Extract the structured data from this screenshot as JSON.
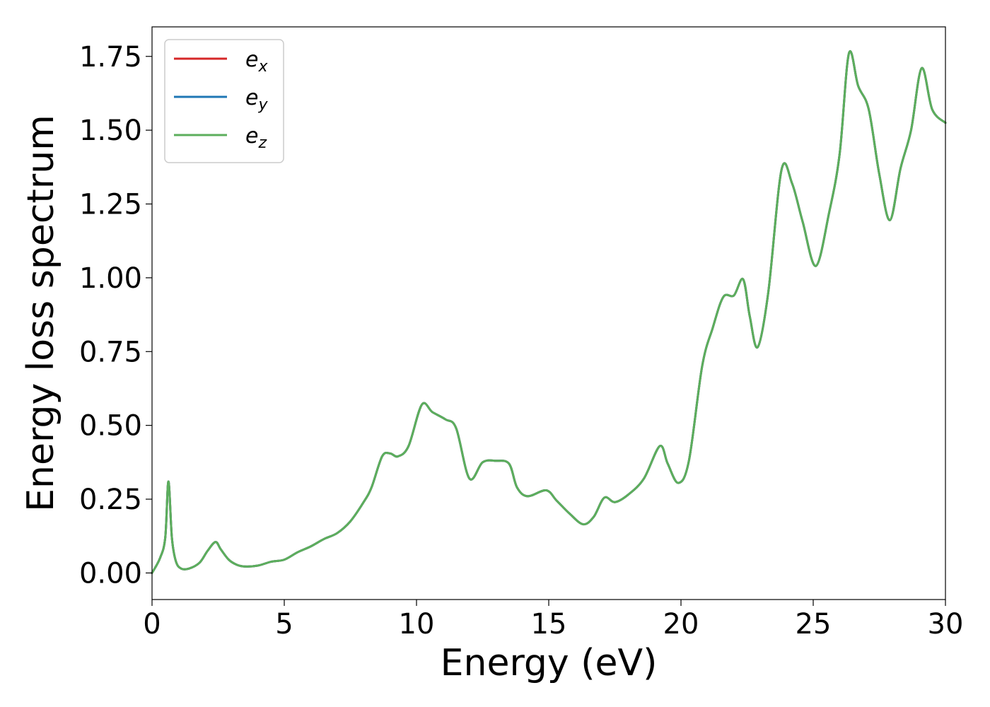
{
  "chart_data": {
    "type": "line",
    "title": "",
    "xlabel": "Energy (eV)",
    "ylabel": "Energy loss spectrum",
    "xlim": [
      0,
      30
    ],
    "ylim": [
      -0.09,
      1.85
    ],
    "xticks": [
      0,
      5,
      10,
      15,
      20,
      25,
      30
    ],
    "xtick_labels": [
      "0",
      "5",
      "10",
      "15",
      "20",
      "25",
      "30"
    ],
    "yticks": [
      0,
      0.25,
      0.5,
      0.75,
      1.0,
      1.25,
      1.5,
      1.75
    ],
    "ytick_labels": [
      "0.00",
      "0.25",
      "0.50",
      "0.75",
      "1.00",
      "1.25",
      "1.50",
      "1.75"
    ],
    "grid": false,
    "legend_position": "top-left",
    "x": [
      0,
      0.3,
      0.5,
      0.62,
      0.75,
      0.9,
      1.1,
      1.4,
      1.8,
      2.1,
      2.4,
      2.6,
      2.9,
      3.2,
      3.5,
      4.0,
      4.5,
      5.0,
      5.5,
      6.0,
      6.5,
      7.0,
      7.5,
      8.0,
      8.3,
      8.7,
      9.0,
      9.3,
      9.7,
      10.2,
      10.6,
      11.1,
      11.5,
      12.0,
      12.5,
      13.0,
      13.5,
      13.8,
      14.2,
      14.9,
      15.3,
      15.8,
      16.3,
      16.7,
      17.1,
      17.5,
      18.0,
      18.6,
      19.2,
      19.5,
      19.9,
      20.3,
      20.8,
      21.2,
      21.6,
      22.0,
      22.35,
      22.6,
      22.9,
      23.3,
      23.8,
      24.2,
      24.6,
      25.1,
      25.6,
      26.0,
      26.35,
      26.7,
      27.1,
      27.5,
      27.9,
      28.3,
      28.7,
      29.1,
      29.5,
      30.0
    ],
    "series": [
      {
        "name": "e_x",
        "color": "#d62728",
        "values": [
          0.0,
          0.05,
          0.12,
          0.31,
          0.12,
          0.04,
          0.015,
          0.015,
          0.035,
          0.075,
          0.105,
          0.08,
          0.045,
          0.028,
          0.022,
          0.025,
          0.038,
          0.045,
          0.07,
          0.09,
          0.115,
          0.135,
          0.175,
          0.24,
          0.29,
          0.395,
          0.405,
          0.395,
          0.43,
          0.57,
          0.545,
          0.52,
          0.49,
          0.32,
          0.375,
          0.38,
          0.37,
          0.29,
          0.26,
          0.28,
          0.245,
          0.2,
          0.165,
          0.19,
          0.255,
          0.24,
          0.265,
          0.32,
          0.43,
          0.37,
          0.305,
          0.38,
          0.7,
          0.83,
          0.935,
          0.94,
          0.995,
          0.87,
          0.765,
          0.95,
          1.365,
          1.32,
          1.19,
          1.04,
          1.22,
          1.42,
          1.76,
          1.65,
          1.57,
          1.35,
          1.195,
          1.37,
          1.5,
          1.71,
          1.57,
          1.525
        ]
      },
      {
        "name": "e_y",
        "color": "#1f77b4",
        "values": [
          0.0,
          0.05,
          0.12,
          0.31,
          0.12,
          0.04,
          0.015,
          0.015,
          0.035,
          0.075,
          0.105,
          0.08,
          0.045,
          0.028,
          0.022,
          0.025,
          0.038,
          0.045,
          0.07,
          0.09,
          0.115,
          0.135,
          0.175,
          0.24,
          0.29,
          0.395,
          0.405,
          0.395,
          0.43,
          0.57,
          0.545,
          0.52,
          0.49,
          0.32,
          0.375,
          0.38,
          0.37,
          0.29,
          0.26,
          0.28,
          0.245,
          0.2,
          0.165,
          0.19,
          0.255,
          0.24,
          0.265,
          0.32,
          0.43,
          0.37,
          0.305,
          0.38,
          0.7,
          0.83,
          0.935,
          0.94,
          0.995,
          0.87,
          0.765,
          0.95,
          1.365,
          1.32,
          1.19,
          1.04,
          1.22,
          1.42,
          1.76,
          1.65,
          1.57,
          1.35,
          1.195,
          1.37,
          1.5,
          1.71,
          1.57,
          1.525
        ]
      },
      {
        "name": "e_z",
        "color": "#5cae5c",
        "values": [
          0.0,
          0.05,
          0.12,
          0.31,
          0.12,
          0.04,
          0.015,
          0.015,
          0.035,
          0.075,
          0.105,
          0.08,
          0.045,
          0.028,
          0.022,
          0.025,
          0.038,
          0.045,
          0.07,
          0.09,
          0.115,
          0.135,
          0.175,
          0.24,
          0.29,
          0.395,
          0.405,
          0.395,
          0.43,
          0.57,
          0.545,
          0.52,
          0.49,
          0.32,
          0.375,
          0.38,
          0.37,
          0.29,
          0.26,
          0.28,
          0.245,
          0.2,
          0.165,
          0.19,
          0.255,
          0.24,
          0.265,
          0.32,
          0.43,
          0.37,
          0.305,
          0.38,
          0.7,
          0.83,
          0.935,
          0.94,
          0.995,
          0.87,
          0.765,
          0.95,
          1.365,
          1.32,
          1.19,
          1.04,
          1.22,
          1.42,
          1.76,
          1.65,
          1.57,
          1.35,
          1.195,
          1.37,
          1.5,
          1.71,
          1.57,
          1.525
        ]
      }
    ],
    "legend": [
      {
        "base": "e",
        "sub": "x",
        "color": "#d62728"
      },
      {
        "base": "e",
        "sub": "y",
        "color": "#1f77b4"
      },
      {
        "base": "e",
        "sub": "z",
        "color": "#5cae5c"
      }
    ]
  }
}
